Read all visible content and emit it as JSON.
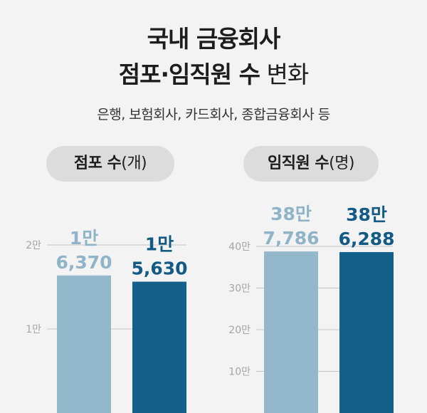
{
  "header": {
    "title_line1": "국내 금융회사",
    "title_line2_bold": "점포·임직원 수",
    "title_line2_light": " 변화",
    "subtitle": "은행, 보험회사, 카드회사, 종합금융회사 등"
  },
  "colors": {
    "light_bar": "#93b8cb",
    "dark_bar": "#13618b",
    "light_text": "#8fb3c7",
    "dark_text": "#135a85",
    "grid": "#c4c4c4"
  },
  "chart_data": [
    {
      "type": "bar",
      "title": "점포 수",
      "unit": "(개)",
      "ylim": [
        0,
        20000
      ],
      "yticks": [
        {
          "value": 10000,
          "label": "1만"
        },
        {
          "value": 20000,
          "label": "2만"
        }
      ],
      "series": [
        {
          "value": 16370,
          "label_top": "1만",
          "label_bottom": "6,370",
          "style": "light"
        },
        {
          "value": 15630,
          "label_top": "1만",
          "label_bottom": "5,630",
          "style": "dark"
        }
      ]
    },
    {
      "type": "bar",
      "title": "임직원 수",
      "unit": "(명)",
      "ylim": [
        0,
        400000
      ],
      "yticks": [
        {
          "value": 100000,
          "label": "10만"
        },
        {
          "value": 200000,
          "label": "20만"
        },
        {
          "value": 300000,
          "label": "30만"
        },
        {
          "value": 400000,
          "label": "40만"
        }
      ],
      "series": [
        {
          "value": 387786,
          "label_top": "38만",
          "label_bottom": "7,786",
          "style": "light"
        },
        {
          "value": 386288,
          "label_top": "38만",
          "label_bottom": "6,288",
          "style": "dark"
        }
      ]
    }
  ]
}
